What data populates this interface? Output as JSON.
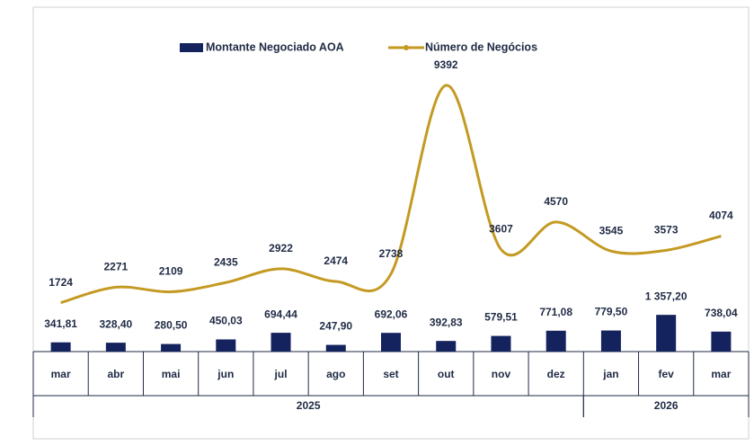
{
  "chart_data": {
    "type": "bar_line",
    "categories": [
      "mar",
      "abr",
      "mai",
      "jun",
      "jul",
      "ago",
      "set",
      "out",
      "nov",
      "dez",
      "jan",
      "fev",
      "mar"
    ],
    "groups": [
      {
        "label": "2025",
        "size": 10
      },
      {
        "label": "2026",
        "size": 3
      }
    ],
    "series": [
      {
        "name": "Montante Negociado AOA",
        "type": "bar",
        "color": "#14235e",
        "values": [
          341.81,
          328.4,
          280.5,
          450.03,
          694.44,
          247.9,
          692.06,
          392.83,
          579.51,
          771.08,
          779.5,
          1357.2,
          738.04
        ],
        "value_labels": [
          "341,81",
          "328,40",
          "280,50",
          "450,03",
          "694,44",
          "247,90",
          "692,06",
          "392,83",
          "579,51",
          "771,08",
          "779,50",
          "1 357,20",
          "738,04"
        ]
      },
      {
        "name": "Número de Negócios",
        "type": "line",
        "axis": "y2",
        "color": "#c49a22",
        "values": [
          1724,
          2271,
          2109,
          2435,
          2922,
          2474,
          2738,
          9392,
          3607,
          4570,
          3545,
          3573,
          4074
        ]
      }
    ],
    "ylim": [
      0,
      11000
    ],
    "y2lim": [
      0,
      10500
    ],
    "legend": "top"
  }
}
